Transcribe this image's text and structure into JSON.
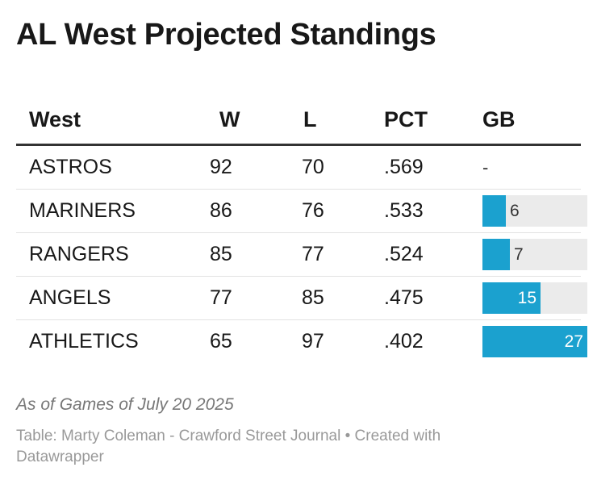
{
  "title": "AL West Projected Standings",
  "columns": [
    "West",
    "W",
    "L",
    "PCT",
    "GB"
  ],
  "chart_data": {
    "type": "table",
    "title": "AL West Projected Standings",
    "columns": [
      "West",
      "W",
      "L",
      "PCT",
      "GB"
    ],
    "rows": [
      {
        "team": "ASTROS",
        "w": "92",
        "l": "70",
        "pct": ".569",
        "gb": "-",
        "gb_value": 0
      },
      {
        "team": "MARINERS",
        "w": "86",
        "l": "76",
        "pct": ".533",
        "gb": "6",
        "gb_value": 6
      },
      {
        "team": "RANGERS",
        "w": "85",
        "l": "77",
        "pct": ".524",
        "gb": "7",
        "gb_value": 7
      },
      {
        "team": "ANGELS",
        "w": "77",
        "l": "85",
        "pct": ".475",
        "gb": "15",
        "gb_value": 15
      },
      {
        "team": "ATHLETICS",
        "w": "65",
        "l": "97",
        "pct": ".402",
        "gb": "27",
        "gb_value": 27
      }
    ],
    "gb_max": 27
  },
  "colors": {
    "bar": "#1ba1cf",
    "track": "#ebebeb"
  },
  "footer": {
    "note": "As of Games of July 20 2025",
    "credit": "Table: Marty Coleman - Crawford Street Journal • Created with Datawrapper"
  }
}
